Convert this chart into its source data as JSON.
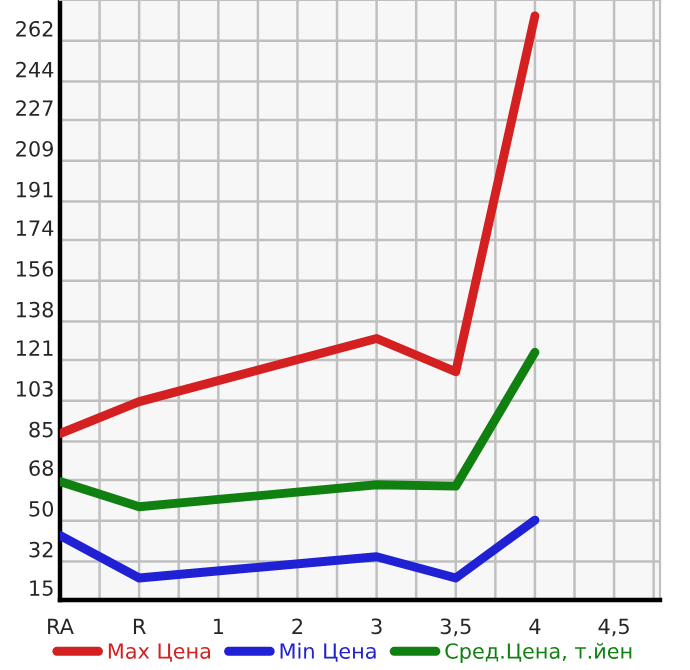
{
  "chart_data": {
    "type": "line",
    "categories": [
      "RA",
      "R",
      "1",
      "2",
      "3",
      "3,5",
      "4",
      "4,5"
    ],
    "series": [
      {
        "name": "Max Цена",
        "color": "#d42020",
        "values": [
          88.5,
          102.6,
          null,
          null,
          130.5,
          115.8,
          273,
          null
        ]
      },
      {
        "name": "Min Цена",
        "color": "#2020d4",
        "values": [
          43.5,
          24.7,
          null,
          null,
          34.1,
          24.7,
          50.3,
          null
        ]
      },
      {
        "name": "Сред.Цена, т.йен",
        "color": "#108010",
        "values": [
          67.3,
          56.2,
          null,
          null,
          65.9,
          65.3,
          124.4,
          null
        ]
      }
    ],
    "ylim": [
      15,
      280
    ],
    "yticks": [
      15,
      32,
      50,
      68,
      85,
      103,
      121,
      138,
      156,
      174,
      191,
      209,
      227,
      244,
      262
    ],
    "grid": true,
    "legend": "bottom",
    "marker": "none",
    "line_style": "solid"
  }
}
